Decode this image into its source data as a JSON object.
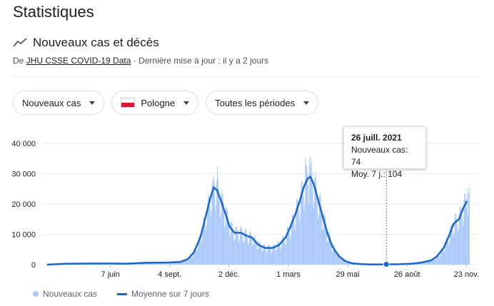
{
  "page": {
    "title": "Statistiques"
  },
  "section": {
    "title": "Nouveaux cas et décès",
    "source_prefix": "De",
    "source_link": "JHU CSSE COVID-19 Data",
    "source_suffix": "· Dernière mise à jour : il y a 2 jours",
    "icon": "trending-line-icon"
  },
  "filters": {
    "metric": "Nouveaux cas",
    "country": "Pologne",
    "period": "Toutes les périodes",
    "flag_colors": {
      "top": "#ffffff",
      "bottom": "#dc143c"
    }
  },
  "tooltip": {
    "date": "26 juill. 2021",
    "cases": "Nouveaux cas: 74",
    "avg": "Moy. 7 j.: 104"
  },
  "legend": {
    "bars": "Nouveaux cas",
    "line": "Moyenne sur 7 jours"
  },
  "colors": {
    "bars": "#a8c7fa",
    "line": "#1a66c9",
    "grid": "#e8eaed"
  },
  "chart_data": {
    "type": "bar",
    "title": "",
    "xlabel": "",
    "ylabel": "",
    "ylim": [
      0,
      40000
    ],
    "yticks": [
      0,
      10000,
      20000,
      30000,
      40000
    ],
    "ytick_labels": [
      "0",
      "10 000",
      "20 000",
      "30 000",
      "40 000"
    ],
    "xticks": [
      {
        "date": "2020-06-07",
        "label": "7 juin"
      },
      {
        "date": "2020-09-04",
        "label": "4 sept."
      },
      {
        "date": "2020-12-02",
        "label": "2 déc."
      },
      {
        "date": "2021-03-01",
        "label": "1 mars"
      },
      {
        "date": "2021-05-29",
        "label": "29 mai"
      },
      {
        "date": "2021-08-26",
        "label": "26 août"
      },
      {
        "date": "2021-11-23",
        "label": "23 nov."
      }
    ],
    "x_range": [
      "2020-03-04",
      "2021-11-27"
    ],
    "series": [
      {
        "name": "Moyenne sur 7 jours",
        "kind": "line",
        "points": [
          [
            "2020-03-04",
            0
          ],
          [
            "2020-04-01",
            300
          ],
          [
            "2020-05-01",
            350
          ],
          [
            "2020-06-01",
            380
          ],
          [
            "2020-07-01",
            320
          ],
          [
            "2020-08-01",
            600
          ],
          [
            "2020-09-01",
            700
          ],
          [
            "2020-09-20",
            900
          ],
          [
            "2020-10-01",
            1800
          ],
          [
            "2020-10-10",
            4000
          ],
          [
            "2020-10-20",
            9000
          ],
          [
            "2020-10-28",
            16000
          ],
          [
            "2020-11-04",
            22000
          ],
          [
            "2020-11-09",
            25500
          ],
          [
            "2020-11-14",
            24500
          ],
          [
            "2020-11-20",
            21000
          ],
          [
            "2020-11-27",
            16500
          ],
          [
            "2020-12-03",
            12500
          ],
          [
            "2020-12-10",
            10500
          ],
          [
            "2020-12-20",
            10500
          ],
          [
            "2020-12-28",
            9500
          ],
          [
            "2021-01-05",
            9000
          ],
          [
            "2021-01-15",
            6500
          ],
          [
            "2021-01-25",
            5500
          ],
          [
            "2021-02-05",
            5500
          ],
          [
            "2021-02-15",
            6500
          ],
          [
            "2021-02-25",
            9000
          ],
          [
            "2021-03-05",
            13000
          ],
          [
            "2021-03-12",
            17000
          ],
          [
            "2021-03-18",
            21000
          ],
          [
            "2021-03-24",
            25500
          ],
          [
            "2021-03-30",
            28500
          ],
          [
            "2021-04-03",
            29000
          ],
          [
            "2021-04-08",
            26500
          ],
          [
            "2021-04-15",
            21000
          ],
          [
            "2021-04-22",
            15500
          ],
          [
            "2021-04-29",
            10000
          ],
          [
            "2021-05-06",
            6000
          ],
          [
            "2021-05-15",
            3000
          ],
          [
            "2021-05-25",
            1200
          ],
          [
            "2021-06-05",
            400
          ],
          [
            "2021-06-20",
            150
          ],
          [
            "2021-07-05",
            80
          ],
          [
            "2021-07-26",
            104
          ],
          [
            "2021-08-15",
            150
          ],
          [
            "2021-09-01",
            300
          ],
          [
            "2021-09-15",
            600
          ],
          [
            "2021-10-01",
            1400
          ],
          [
            "2021-10-10",
            2800
          ],
          [
            "2021-10-20",
            5500
          ],
          [
            "2021-10-28",
            9500
          ],
          [
            "2021-11-04",
            13500
          ],
          [
            "2021-11-12",
            15000
          ],
          [
            "2021-11-18",
            18500
          ],
          [
            "2021-11-24",
            21000
          ]
        ]
      },
      {
        "name": "Nouveaux cas",
        "kind": "bars",
        "approx_daily_profile": "line values with weekly variation",
        "peaks": [
          [
            "2020-11-07",
            27800
          ],
          [
            "2020-11-14",
            32500
          ],
          [
            "2021-03-26",
            35000
          ],
          [
            "2021-04-01",
            35200
          ],
          [
            "2021-11-24",
            25000
          ]
        ]
      }
    ],
    "highlight": {
      "date": "2021-07-26",
      "value": 104
    }
  }
}
